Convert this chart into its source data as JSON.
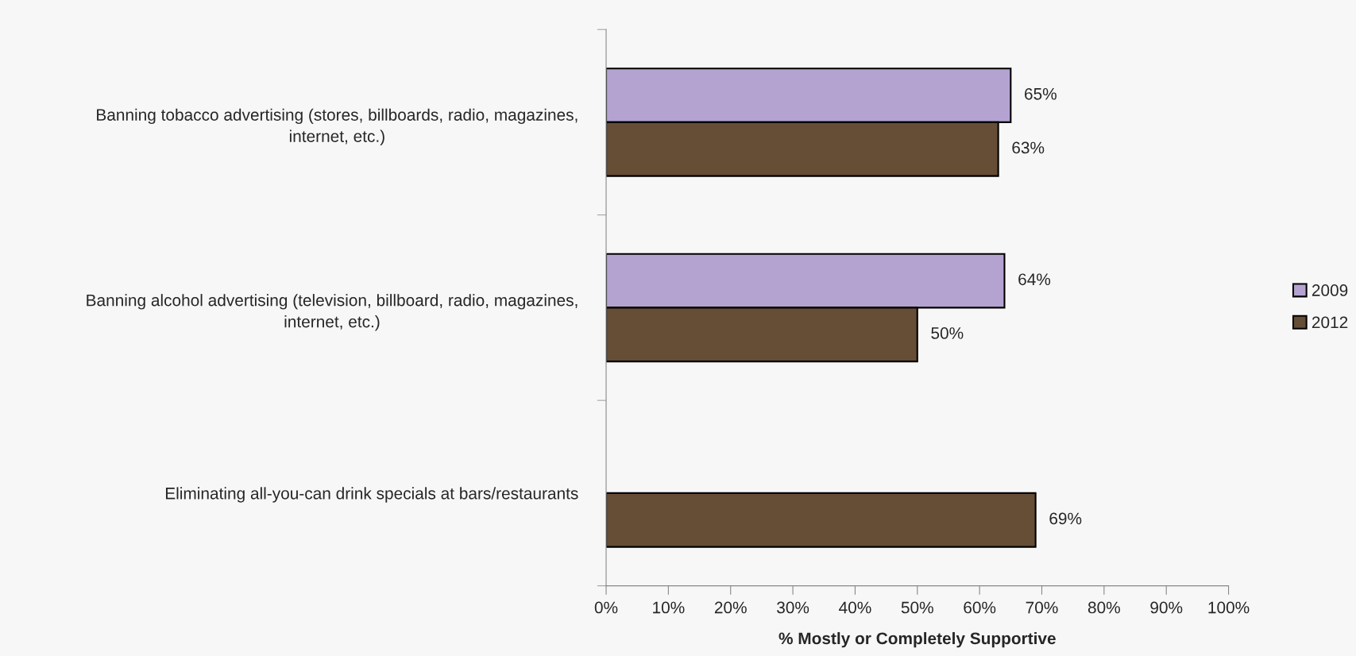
{
  "chart_data": {
    "type": "bar",
    "orientation": "horizontal",
    "categories": [
      "Banning tobacco advertising (stores, billboards, radio, magazines,\ninternet, etc.)",
      "Banning alcohol advertising (television, billboard, radio, magazines,\ninternet, etc.)",
      "Eliminating all-you-can drink specials at bars/restaurants"
    ],
    "series": [
      {
        "name": "2009",
        "color": "#b4a3d1",
        "values": [
          65,
          64,
          null
        ],
        "value_labels": [
          "65%",
          "64%",
          null
        ]
      },
      {
        "name": "2012",
        "color": "#654d36",
        "values": [
          63,
          50,
          69
        ],
        "value_labels": [
          "63%",
          "50%",
          "69%"
        ]
      }
    ],
    "xlabel": "% Mostly or Completely Supportive",
    "xlim": [
      0,
      100
    ],
    "xticks": [
      {
        "value": 0,
        "label": "0%"
      },
      {
        "value": 10,
        "label": "10%"
      },
      {
        "value": 20,
        "label": "20%"
      },
      {
        "value": 30,
        "label": "30%"
      },
      {
        "value": 40,
        "label": "40%"
      },
      {
        "value": 50,
        "label": "50%"
      },
      {
        "value": 60,
        "label": "60%"
      },
      {
        "value": 70,
        "label": "70%"
      },
      {
        "value": 80,
        "label": "80%"
      },
      {
        "value": 90,
        "label": "90%"
      },
      {
        "value": 100,
        "label": "100%"
      }
    ],
    "grid": false,
    "legend": "right"
  }
}
